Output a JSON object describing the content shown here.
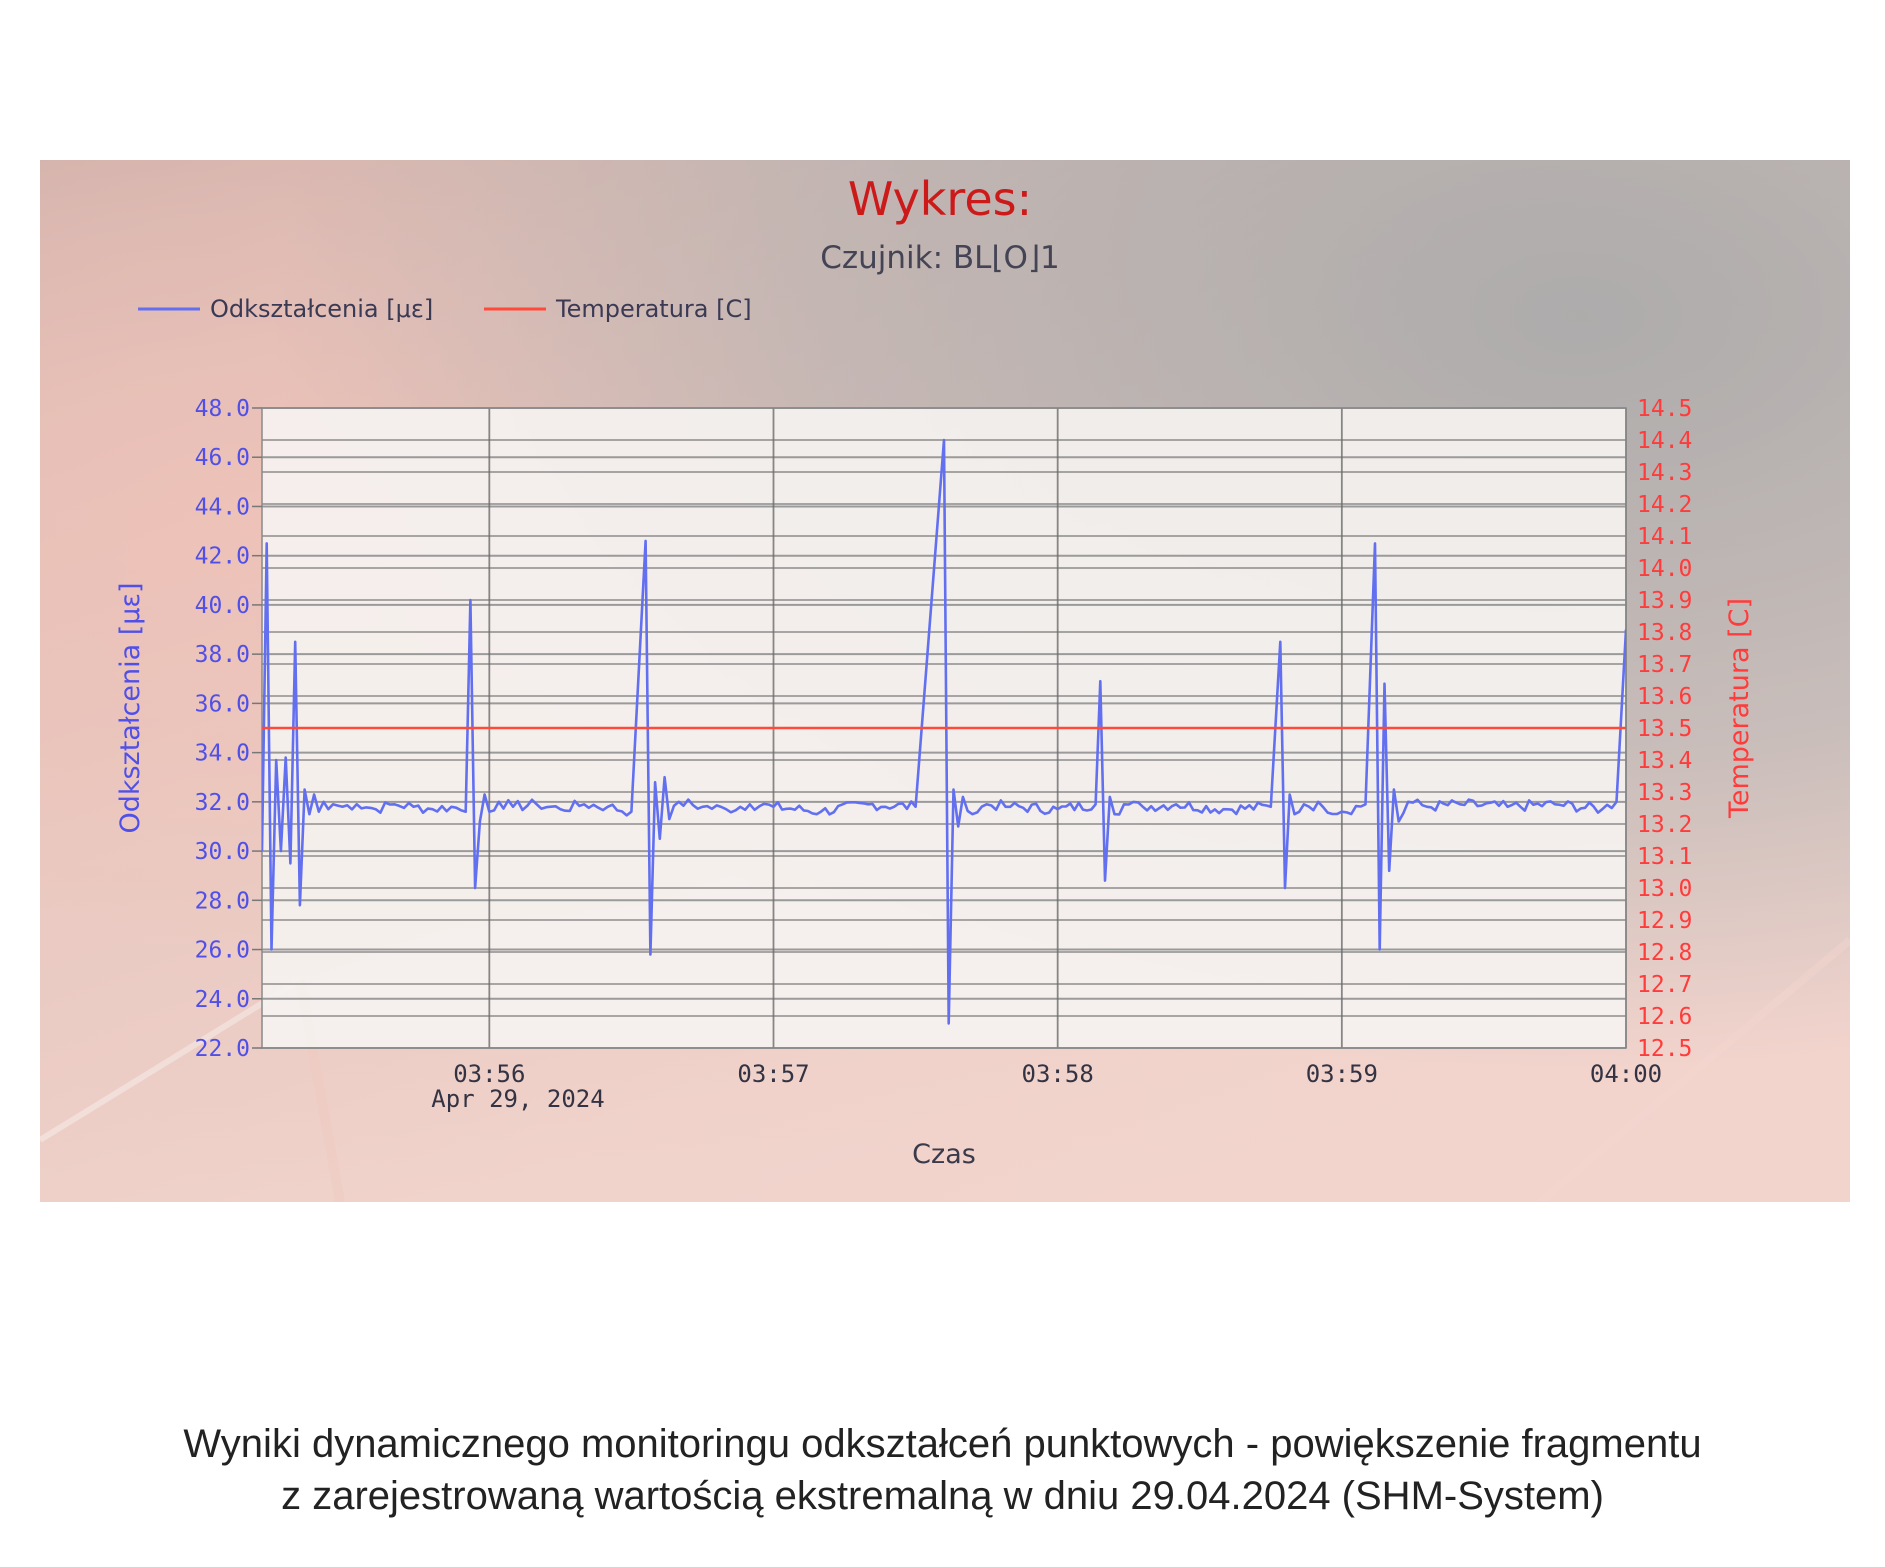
{
  "chart_data": {
    "type": "line",
    "title": "Wykres:",
    "subtitle": "Czujnik: BL⌊O⌋1",
    "xlabel": "Czas",
    "ylabel_left": "Odkształcenia [με]",
    "ylabel_right": "Temperatura [C]",
    "x_ticks": [
      "03:56",
      "03:57",
      "03:58",
      "03:59",
      "04:00"
    ],
    "x_date_label": "Apr 29, 2024",
    "xlim": [
      "03:55:12",
      "04:00:00"
    ],
    "y_left_ticks": [
      "22.0",
      "24.0",
      "26.0",
      "28.0",
      "30.0",
      "32.0",
      "34.0",
      "36.0",
      "38.0",
      "40.0",
      "42.0",
      "44.0",
      "46.0",
      "48.0"
    ],
    "ylim_left": [
      22,
      48
    ],
    "y_right_ticks": [
      "12.5",
      "12.6",
      "12.7",
      "12.8",
      "12.9",
      "13.0",
      "13.1",
      "13.2",
      "13.3",
      "13.4",
      "13.5",
      "13.6",
      "13.7",
      "13.8",
      "13.9",
      "14.0",
      "14.1",
      "14.2",
      "14.3",
      "14.4",
      "14.5"
    ],
    "ylim_right": [
      12.5,
      14.5
    ],
    "grid": true,
    "legend_position": "top-left",
    "series": [
      {
        "name": "Odkształcenia [με]",
        "axis": "left",
        "color": "#6270f0",
        "baseline": 31.8,
        "x": [
          "03:55:12",
          "03:55:13",
          "03:55:14",
          "03:55:15",
          "03:55:16",
          "03:55:17",
          "03:55:18",
          "03:55:19",
          "03:55:20",
          "03:55:21",
          "03:55:22",
          "03:55:23",
          "03:55:24",
          "03:55:25",
          "03:55:26",
          "03:55:27",
          "03:55:29",
          "03:55:32",
          "03:55:36",
          "03:55:40",
          "03:55:44",
          "03:55:48",
          "03:55:52",
          "03:55:55",
          "03:55:56",
          "03:55:57",
          "03:55:58",
          "03:55:59",
          "03:56:00",
          "03:56:02",
          "03:56:05",
          "03:56:10",
          "03:56:15",
          "03:56:20",
          "03:56:25",
          "03:56:30",
          "03:56:33",
          "03:56:34",
          "03:56:35",
          "03:56:36",
          "03:56:37",
          "03:56:38",
          "03:56:40",
          "03:56:45",
          "03:56:50",
          "03:56:55",
          "03:57:00",
          "03:57:10",
          "03:57:20",
          "03:57:30",
          "03:57:36",
          "03:57:37",
          "03:57:38",
          "03:57:39",
          "03:57:40",
          "03:57:42",
          "03:57:45",
          "03:57:50",
          "03:58:00",
          "03:58:08",
          "03:58:09",
          "03:58:10",
          "03:58:11",
          "03:58:12",
          "03:58:14",
          "03:58:18",
          "03:58:25",
          "03:58:35",
          "03:58:45",
          "03:58:47",
          "03:58:48",
          "03:58:49",
          "03:58:50",
          "03:58:52",
          "03:58:56",
          "03:59:00",
          "03:59:05",
          "03:59:07",
          "03:59:08",
          "03:59:09",
          "03:59:10",
          "03:59:11",
          "03:59:12",
          "03:59:14",
          "03:59:18",
          "03:59:25",
          "03:59:35",
          "03:59:45",
          "03:59:55",
          "03:59:58",
          "04:00:00"
        ],
        "values": [
          30.0,
          42.5,
          26.0,
          33.7,
          30.0,
          33.8,
          29.5,
          38.5,
          27.8,
          32.5,
          31.5,
          32.3,
          31.6,
          32.0,
          31.7,
          31.9,
          31.8,
          31.9,
          31.7,
          31.9,
          31.8,
          31.7,
          31.8,
          31.6,
          40.2,
          28.5,
          31.2,
          32.3,
          31.6,
          32.0,
          31.8,
          31.9,
          31.7,
          31.9,
          31.8,
          31.6,
          42.6,
          25.8,
          32.8,
          30.5,
          33.0,
          31.3,
          32.0,
          31.8,
          31.7,
          31.9,
          31.8,
          31.6,
          31.9,
          31.8,
          46.7,
          23.0,
          32.5,
          31.0,
          32.2,
          31.5,
          31.9,
          31.8,
          31.7,
          31.9,
          36.9,
          28.8,
          32.2,
          31.5,
          31.9,
          31.8,
          31.9,
          31.7,
          31.8,
          38.5,
          28.5,
          32.3,
          31.5,
          31.9,
          31.8,
          31.6,
          31.9,
          42.5,
          26.0,
          36.8,
          29.2,
          32.5,
          31.2,
          32.0,
          31.8,
          31.9,
          31.8,
          31.9,
          31.7,
          32.0,
          39.0
        ]
      },
      {
        "name": "Temperatura [C]",
        "axis": "right",
        "color": "#ff4a3a",
        "x": [
          "03:55:12",
          "04:00:00"
        ],
        "values": [
          13.5,
          13.5
        ]
      }
    ]
  },
  "caption": {
    "line1": "Wyniki dynamicznego monitoringu odkształceń punktowych - powiększenie fragmentu",
    "line2": "z zarejestrowaną wartością ekstremalną w dniu 29.04.2024 (SHM-System)"
  },
  "colors": {
    "title": "#cc1a1a",
    "subtitle": "#444455",
    "left_axis": "#5050e8",
    "right_axis": "#ff3b3b",
    "plot_bg": "#f5f2f0",
    "grid_major": "#9a9a9a",
    "grid_minor": "#6c6c6c"
  }
}
